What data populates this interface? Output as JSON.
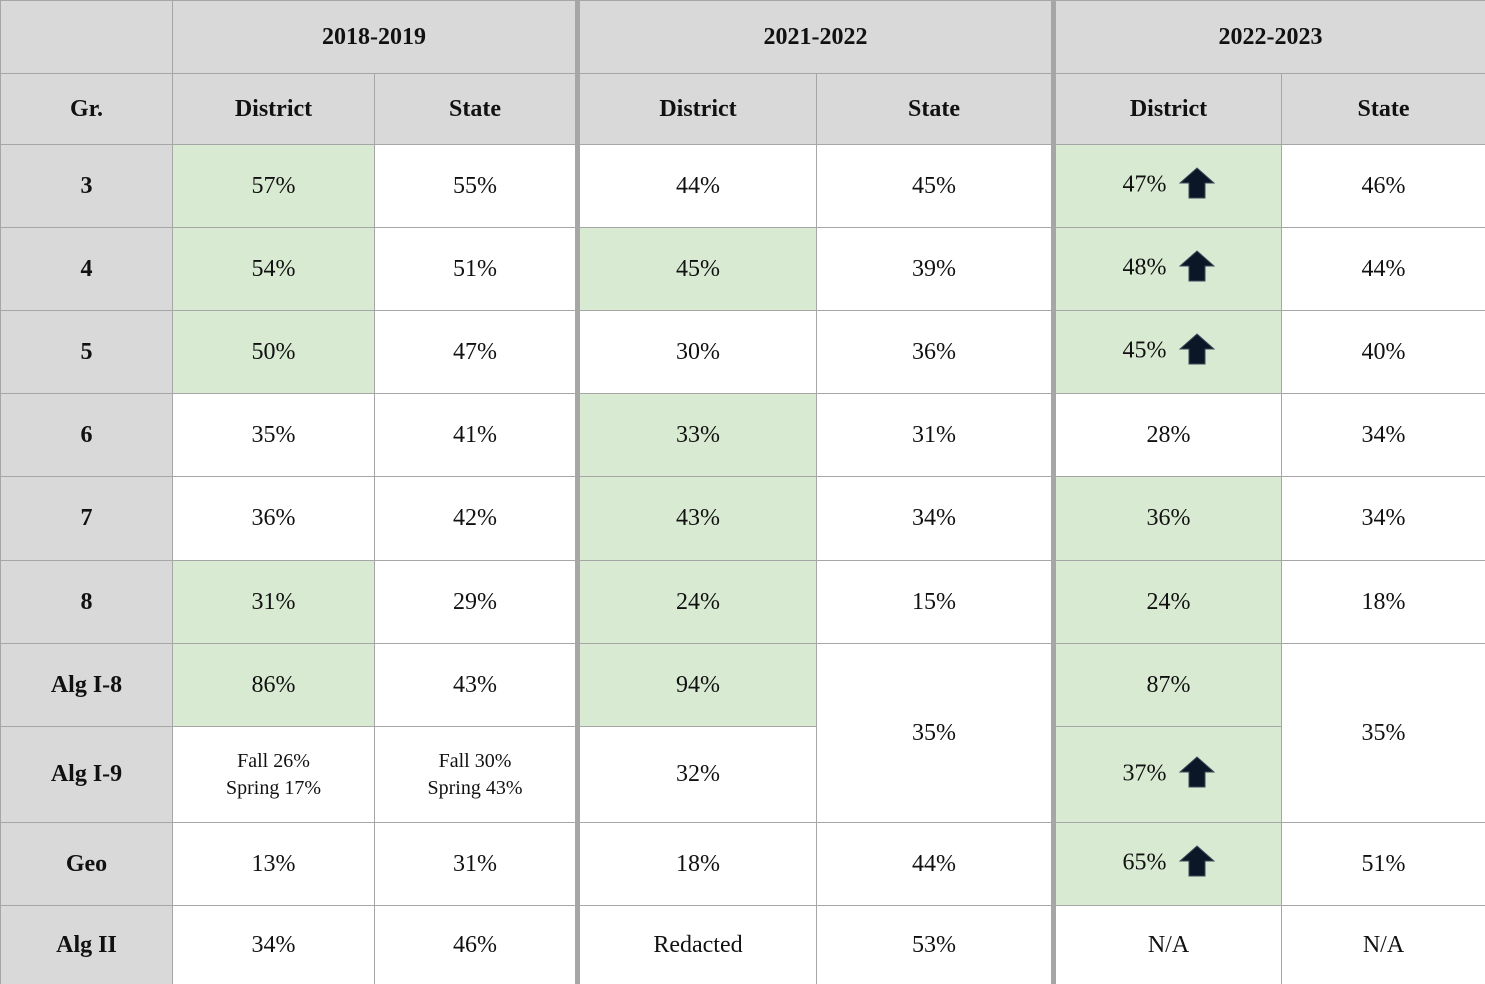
{
  "header": {
    "years": [
      "2018-2019",
      "2021-2022",
      "2022-2023"
    ],
    "columns": [
      "Gr.",
      "District",
      "State",
      "District",
      "State",
      "District",
      "State"
    ]
  },
  "rows": [
    {
      "label": "3",
      "cells": [
        {
          "text": "57%",
          "highlight": true
        },
        {
          "text": "55%"
        },
        {
          "text": "44%"
        },
        {
          "text": "45%"
        },
        {
          "text": "47%",
          "highlight": true,
          "arrow": true
        },
        {
          "text": "46%"
        }
      ]
    },
    {
      "label": "4",
      "cells": [
        {
          "text": "54%",
          "highlight": true
        },
        {
          "text": "51%"
        },
        {
          "text": "45%",
          "highlight": true
        },
        {
          "text": "39%"
        },
        {
          "text": "48%",
          "highlight": true,
          "arrow": true
        },
        {
          "text": "44%"
        }
      ]
    },
    {
      "label": "5",
      "cells": [
        {
          "text": "50%",
          "highlight": true
        },
        {
          "text": "47%"
        },
        {
          "text": "30%"
        },
        {
          "text": "36%"
        },
        {
          "text": "45%",
          "highlight": true,
          "arrow": true
        },
        {
          "text": "40%"
        }
      ]
    },
    {
      "label": "6",
      "cells": [
        {
          "text": "35%"
        },
        {
          "text": "41%"
        },
        {
          "text": "33%",
          "highlight": true
        },
        {
          "text": "31%"
        },
        {
          "text": "28%"
        },
        {
          "text": "34%"
        }
      ]
    },
    {
      "label": "7",
      "cells": [
        {
          "text": "36%"
        },
        {
          "text": "42%"
        },
        {
          "text": "43%",
          "highlight": true
        },
        {
          "text": "34%"
        },
        {
          "text": "36%",
          "highlight": true
        },
        {
          "text": "34%"
        }
      ]
    },
    {
      "label": "8",
      "cells": [
        {
          "text": "31%",
          "highlight": true
        },
        {
          "text": "29%"
        },
        {
          "text": "24%",
          "highlight": true
        },
        {
          "text": "15%"
        },
        {
          "text": "24%",
          "highlight": true
        },
        {
          "text": "18%"
        }
      ]
    },
    {
      "label": "Alg I-8",
      "cells": [
        {
          "text": "86%",
          "highlight": true
        },
        {
          "text": "43%"
        },
        {
          "text": "94%",
          "highlight": true
        },
        {
          "text": "35%",
          "rowspan": 2
        },
        {
          "text": "87%",
          "highlight": true
        },
        {
          "text": "35%",
          "rowspan": 2
        }
      ]
    },
    {
      "label": "Alg I-9",
      "cells": [
        {
          "text": [
            "Fall 26%",
            "Spring 17%"
          ]
        },
        {
          "text": [
            "Fall 30%",
            "Spring 43%"
          ]
        },
        {
          "text": "32%"
        },
        {
          "text": "37%",
          "highlight": true,
          "arrow": true
        }
      ]
    },
    {
      "label": "Geo",
      "cells": [
        {
          "text": "13%"
        },
        {
          "text": "31%"
        },
        {
          "text": "18%"
        },
        {
          "text": "44%"
        },
        {
          "text": "65%",
          "highlight": true,
          "arrow": true
        },
        {
          "text": "51%"
        }
      ]
    },
    {
      "label": "Alg II",
      "cells": [
        {
          "text": "34%"
        },
        {
          "text": "46%"
        },
        {
          "text": "Redacted"
        },
        {
          "text": "53%"
        },
        {
          "text": "N/A"
        },
        {
          "text": "N/A"
        }
      ]
    }
  ]
}
